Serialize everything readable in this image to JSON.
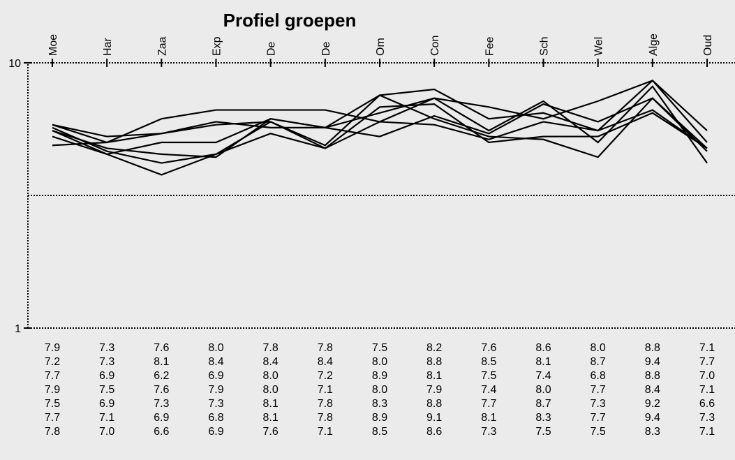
{
  "chart_data": {
    "type": "line",
    "title": "Profiel groepen",
    "categories": [
      "Moe",
      "Har",
      "Zaa",
      "Exp",
      "De",
      "De",
      "Om",
      "Con",
      "Fee",
      "Sch",
      "Wel",
      "Alge",
      "Oud"
    ],
    "ylim": [
      1,
      10
    ],
    "yticks": [
      1,
      10
    ],
    "midline": 5.5,
    "series": [
      {
        "color": "#000000",
        "values": [
          7.9,
          7.3,
          7.6,
          8.0,
          7.8,
          7.8,
          7.5,
          8.2,
          7.6,
          8.6,
          8.0,
          8.8,
          7.1
        ],
        "value_labels": [
          "7.9",
          "7.3",
          "7.6",
          "8.0",
          "7.8",
          "7.8",
          "7.5",
          "8.2",
          "7.6",
          "8.6",
          "8.0",
          "8.8",
          "7.1"
        ]
      },
      {
        "color": "#000000",
        "values": [
          7.2,
          7.3,
          8.1,
          8.4,
          8.4,
          8.4,
          8.0,
          8.8,
          8.5,
          8.1,
          8.7,
          9.4,
          7.7
        ],
        "value_labels": [
          "7.2",
          "7.3",
          "8.1",
          "8.4",
          "8.4",
          "8.4",
          "8.0",
          "8.8",
          "8.5",
          "8.1",
          "8.7",
          "9.4",
          "7.7"
        ]
      },
      {
        "color": "#000000",
        "values": [
          7.7,
          6.9,
          6.2,
          6.9,
          8.0,
          7.2,
          8.9,
          8.1,
          7.5,
          7.4,
          6.8,
          8.8,
          7.0
        ],
        "value_labels": [
          "7.7",
          "6.9",
          "6.2",
          "6.9",
          "8.0",
          "7.2",
          "8.9",
          "8.1",
          "7.5",
          "7.4",
          "6.8",
          "8.8",
          "7.0"
        ]
      },
      {
        "color": "#000000",
        "values": [
          7.9,
          7.5,
          7.6,
          7.9,
          8.0,
          7.1,
          8.0,
          7.9,
          7.4,
          8.0,
          7.7,
          8.4,
          7.1
        ],
        "value_labels": [
          "7.9",
          "7.5",
          "7.6",
          "7.9",
          "8.0",
          "7.1",
          "8.0",
          "7.9",
          "7.4",
          "8.0",
          "7.7",
          "8.4",
          "7.1"
        ]
      },
      {
        "color": "#000000",
        "values": [
          7.5,
          6.9,
          7.3,
          7.3,
          8.1,
          7.8,
          8.3,
          8.8,
          7.7,
          8.7,
          7.3,
          9.2,
          6.6
        ],
        "value_labels": [
          "7.5",
          "6.9",
          "7.3",
          "7.3",
          "8.1",
          "7.8",
          "8.3",
          "8.8",
          "7.7",
          "8.7",
          "7.3",
          "9.2",
          "6.6"
        ]
      },
      {
        "color": "#000000",
        "values": [
          7.7,
          7.1,
          6.9,
          6.8,
          8.1,
          7.8,
          8.9,
          9.1,
          8.1,
          8.3,
          7.7,
          9.4,
          7.3
        ],
        "value_labels": [
          "7.7",
          "7.1",
          "6.9",
          "6.8",
          "8.1",
          "7.8",
          "8.9",
          "9.1",
          "8.1",
          "8.3",
          "7.7",
          "9.4",
          "7.3"
        ]
      },
      {
        "color": "#000000",
        "values": [
          7.8,
          7.0,
          6.6,
          6.9,
          7.6,
          7.1,
          8.5,
          8.6,
          7.3,
          7.5,
          7.5,
          8.3,
          7.1
        ],
        "value_labels": [
          "7.8",
          "7.0",
          "6.6",
          "6.9",
          "7.6",
          "7.1",
          "8.5",
          "8.6",
          "7.3",
          "7.5",
          "7.5",
          "8.3",
          "7.1"
        ]
      }
    ]
  }
}
